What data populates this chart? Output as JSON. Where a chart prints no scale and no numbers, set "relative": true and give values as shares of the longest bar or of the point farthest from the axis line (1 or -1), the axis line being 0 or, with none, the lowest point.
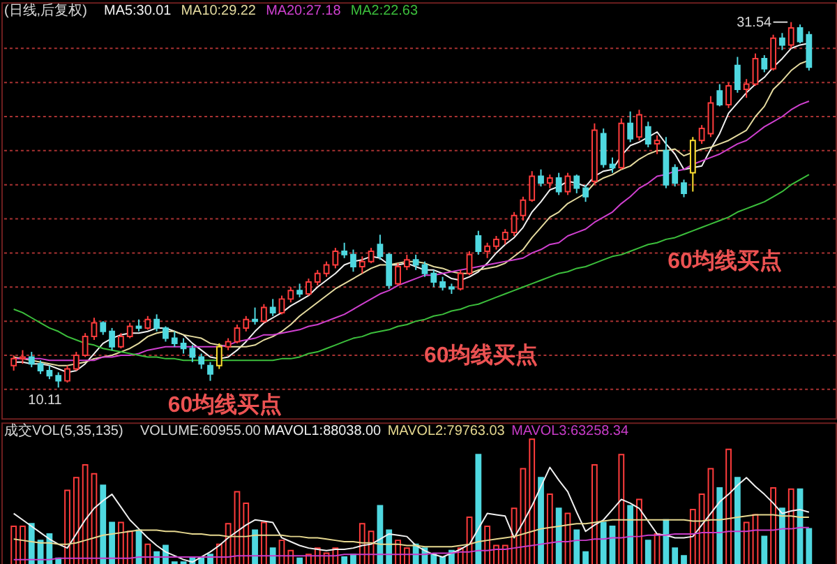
{
  "chart_data": [
    {
      "type": "candlestick",
      "title": "(日线,后复权)",
      "categories": [
        null,
        null,
        null,
        null,
        null,
        null,
        null,
        null,
        null,
        null,
        null,
        null,
        null,
        null,
        null,
        null,
        null,
        null,
        null,
        null,
        null,
        null,
        null,
        null,
        null,
        null,
        null,
        null,
        null,
        null,
        null,
        null,
        null,
        null,
        null,
        null,
        null,
        null,
        null,
        null,
        null,
        null,
        null,
        null,
        null,
        null,
        null,
        null,
        null,
        null,
        null,
        null,
        null,
        null,
        null,
        null,
        null,
        null,
        null,
        null,
        null,
        null,
        null,
        null,
        null,
        null,
        null,
        null,
        null,
        null,
        null,
        null,
        null,
        null,
        null,
        null,
        null,
        null,
        null,
        null,
        null,
        null,
        null,
        null,
        null,
        null,
        null,
        null,
        null,
        null
      ],
      "ohlc": [
        [
          11.4,
          12.0,
          11.1,
          11.8
        ],
        [
          11.8,
          12.3,
          11.5,
          11.9
        ],
        [
          11.9,
          12.2,
          11.3,
          11.5
        ],
        [
          11.5,
          11.7,
          10.9,
          11.1
        ],
        [
          11.1,
          11.4,
          10.6,
          10.8
        ],
        [
          10.8,
          11.0,
          10.11,
          10.5
        ],
        [
          10.5,
          11.4,
          10.4,
          11.2
        ],
        [
          11.2,
          12.2,
          11.1,
          12.0
        ],
        [
          12.0,
          13.3,
          11.9,
          13.1
        ],
        [
          13.1,
          14.2,
          12.9,
          13.9
        ],
        [
          13.9,
          14.0,
          13.2,
          13.4
        ],
        [
          13.4,
          13.6,
          12.3,
          12.5
        ],
        [
          12.5,
          13.3,
          12.4,
          13.1
        ],
        [
          13.1,
          13.9,
          13.0,
          13.7
        ],
        [
          13.7,
          14.1,
          13.4,
          13.6
        ],
        [
          13.6,
          14.3,
          13.5,
          14.1
        ],
        [
          14.1,
          14.4,
          13.4,
          13.6
        ],
        [
          13.6,
          13.7,
          12.8,
          13.0
        ],
        [
          13.0,
          13.4,
          12.5,
          12.7
        ],
        [
          12.7,
          13.0,
          12.1,
          12.4
        ],
        [
          12.4,
          12.6,
          11.6,
          11.9
        ],
        [
          11.9,
          12.1,
          11.2,
          11.5
        ],
        [
          11.4,
          11.6,
          10.5,
          10.9
        ],
        [
          11.4,
          12.7,
          11.2,
          12.5
        ],
        [
          12.5,
          13.0,
          12.3,
          12.8
        ],
        [
          12.8,
          13.8,
          12.7,
          13.6
        ],
        [
          13.6,
          14.3,
          13.4,
          14.1
        ],
        [
          14.1,
          14.8,
          13.8,
          14.0
        ],
        [
          14.0,
          15.0,
          13.9,
          14.8
        ],
        [
          14.8,
          15.3,
          14.3,
          14.5
        ],
        [
          14.5,
          15.5,
          14.4,
          15.3
        ],
        [
          15.3,
          16.0,
          15.1,
          15.8
        ],
        [
          15.8,
          16.2,
          15.4,
          15.6
        ],
        [
          15.6,
          16.5,
          15.5,
          16.3
        ],
        [
          16.3,
          17.0,
          16.1,
          16.8
        ],
        [
          16.8,
          17.5,
          16.6,
          17.3
        ],
        [
          17.3,
          18.3,
          17.1,
          18.1
        ],
        [
          18.1,
          18.6,
          17.7,
          17.9
        ],
        [
          17.9,
          18.2,
          16.9,
          17.2
        ],
        [
          17.2,
          17.8,
          16.8,
          17.5
        ],
        [
          17.5,
          18.3,
          17.4,
          18.1
        ],
        [
          18.5,
          19.07,
          17.6,
          17.8
        ],
        [
          17.9,
          18.0,
          15.9,
          16.1
        ],
        [
          16.2,
          17.4,
          16.1,
          17.2
        ],
        [
          17.2,
          17.9,
          17.0,
          17.6
        ],
        [
          17.6,
          17.9,
          17.0,
          17.3
        ],
        [
          17.3,
          17.5,
          16.6,
          16.8
        ],
        [
          16.8,
          17.0,
          16.0,
          16.3
        ],
        [
          16.3,
          16.6,
          15.8,
          16.0
        ],
        [
          16.0,
          16.2,
          15.6,
          15.9
        ],
        [
          15.9,
          17.0,
          15.8,
          16.8
        ],
        [
          16.8,
          18.1,
          16.7,
          17.9
        ],
        [
          19.0,
          19.3,
          17.9,
          18.1
        ],
        [
          18.1,
          18.6,
          17.7,
          18.4
        ],
        [
          18.4,
          19.0,
          18.2,
          18.8
        ],
        [
          18.8,
          19.4,
          18.5,
          19.2
        ],
        [
          19.2,
          20.4,
          19.0,
          20.2
        ],
        [
          20.2,
          21.3,
          19.9,
          21.1
        ],
        [
          21.1,
          22.8,
          21.0,
          22.5
        ],
        [
          22.5,
          22.9,
          21.9,
          22.1
        ],
        [
          22.1,
          22.6,
          21.8,
          22.4
        ],
        [
          22.4,
          22.7,
          21.4,
          21.6
        ],
        [
          21.6,
          22.7,
          21.4,
          22.5
        ],
        [
          22.5,
          22.6,
          21.5,
          21.8
        ],
        [
          21.8,
          22.0,
          21.0,
          21.3
        ],
        [
          22.2,
          25.6,
          22.0,
          25.2
        ],
        [
          25.0,
          25.3,
          23.0,
          23.2
        ],
        [
          23.2,
          23.6,
          22.7,
          23.0
        ],
        [
          23.0,
          25.9,
          22.9,
          25.6
        ],
        [
          25.6,
          26.3,
          24.5,
          24.7
        ],
        [
          24.8,
          26.4,
          24.6,
          26.1
        ],
        [
          25.4,
          25.7,
          24.2,
          24.4
        ],
        [
          24.4,
          24.9,
          23.8,
          24.6
        ],
        [
          24.0,
          24.8,
          21.8,
          22.0
        ],
        [
          23.0,
          23.2,
          21.9,
          22.1
        ],
        [
          22.1,
          22.3,
          21.27,
          21.5
        ],
        [
          22.7,
          24.8,
          21.6,
          24.6
        ],
        [
          24.6,
          25.5,
          24.4,
          25.3
        ],
        [
          25.0,
          27.2,
          24.8,
          26.8
        ],
        [
          27.5,
          27.9,
          26.6,
          26.7
        ],
        [
          26.7,
          28.0,
          26.5,
          27.8
        ],
        [
          29.0,
          29.5,
          27.4,
          27.6
        ],
        [
          27.6,
          28.2,
          27.1,
          27.9
        ],
        [
          27.9,
          29.7,
          27.8,
          29.4
        ],
        [
          29.4,
          29.6,
          28.6,
          28.8
        ],
        [
          28.8,
          30.8,
          28.7,
          30.6
        ],
        [
          30.6,
          30.9,
          29.9,
          30.2
        ],
        [
          30.2,
          31.54,
          30.0,
          31.2
        ],
        [
          31.2,
          31.4,
          30.3,
          30.4
        ],
        [
          30.8,
          31.0,
          28.7,
          28.9
        ]
      ],
      "colors": [
        "#ff3c3c",
        "#ff3c3c",
        "#4fd8e0",
        "#4fd8e0",
        "#4fd8e0",
        "#4fd8e0",
        "#ff3c3c",
        "#ff3c3c",
        "#ff3c3c",
        "#ff3c3c",
        "#4fd8e0",
        "#4fd8e0",
        "#ff3c3c",
        "#ff3c3c",
        "#4fd8e0",
        "#ff3c3c",
        "#4fd8e0",
        "#4fd8e0",
        "#4fd8e0",
        "#4fd8e0",
        "#4fd8e0",
        "#4fd8e0",
        "#4fd8e0",
        "#ffe030",
        "#ff3c3c",
        "#ff3c3c",
        "#ff3c3c",
        "#4fd8e0",
        "#ff3c3c",
        "#4fd8e0",
        "#ff3c3c",
        "#ff3c3c",
        "#4fd8e0",
        "#ff3c3c",
        "#ff3c3c",
        "#ff3c3c",
        "#ff3c3c",
        "#4fd8e0",
        "#4fd8e0",
        "#ff3c3c",
        "#ff3c3c",
        "#4fd8e0",
        "#4fd8e0",
        "#ff3c3c",
        "#ff3c3c",
        "#4fd8e0",
        "#4fd8e0",
        "#4fd8e0",
        "#4fd8e0",
        "#4fd8e0",
        "#ff3c3c",
        "#ff3c3c",
        "#4fd8e0",
        "#ff3c3c",
        "#ff3c3c",
        "#ff3c3c",
        "#ff3c3c",
        "#ff3c3c",
        "#ff3c3c",
        "#4fd8e0",
        "#ff3c3c",
        "#4fd8e0",
        "#ff3c3c",
        "#4fd8e0",
        "#4fd8e0",
        "#ff3c3c",
        "#4fd8e0",
        "#4fd8e0",
        "#ff3c3c",
        "#4fd8e0",
        "#ff3c3c",
        "#4fd8e0",
        "#ff3c3c",
        "#4fd8e0",
        "#4fd8e0",
        "#4fd8e0",
        "#ffe030",
        "#ff3c3c",
        "#ff3c3c",
        "#4fd8e0",
        "#ff3c3c",
        "#4fd8e0",
        "#ff3c3c",
        "#ff3c3c",
        "#4fd8e0",
        "#ff3c3c",
        "#4fd8e0",
        "#ff3c3c",
        "#4fd8e0",
        "#4fd8e0"
      ],
      "series": [
        {
          "name": "MA5:30.01",
          "type": "line",
          "color": "#f2f2f2",
          "values": [
            11.6,
            11.6,
            11.5,
            11.5,
            11.4,
            11.2,
            11.0,
            11.1,
            11.5,
            12.1,
            12.7,
            13.0,
            13.2,
            13.3,
            13.3,
            13.4,
            13.6,
            13.6,
            13.4,
            13.2,
            12.7,
            12.3,
            11.9,
            11.8,
            11.9,
            12.3,
            12.8,
            13.4,
            13.9,
            14.2,
            14.5,
            14.9,
            15.2,
            15.5,
            16.0,
            16.4,
            16.8,
            17.3,
            17.5,
            17.6,
            17.8,
            17.7,
            17.3,
            17.3,
            17.4,
            17.2,
            17.0,
            17.0,
            16.8,
            16.5,
            16.4,
            16.6,
            16.9,
            17.4,
            18.0,
            18.5,
            18.9,
            19.5,
            20.4,
            21.0,
            21.7,
            21.9,
            22.2,
            22.1,
            21.9,
            22.5,
            22.8,
            22.9,
            23.7,
            24.3,
            24.5,
            24.8,
            25.1,
            24.4,
            23.8,
            22.9,
            23.0,
            23.1,
            24.1,
            25.0,
            26.2,
            26.8,
            27.4,
            27.9,
            28.3,
            28.9,
            29.4,
            30.0,
            30.2,
            30.3
          ]
        },
        {
          "name": "MA10:29.22",
          "type": "line",
          "color": "#e6dca0",
          "values": [
            11.9,
            11.8,
            11.7,
            11.6,
            11.5,
            11.4,
            11.4,
            11.5,
            11.6,
            11.8,
            11.9,
            12.0,
            12.2,
            12.4,
            12.7,
            13.1,
            13.3,
            13.4,
            13.4,
            13.2,
            13.1,
            13.0,
            12.7,
            12.6,
            12.5,
            12.5,
            12.5,
            12.6,
            12.9,
            13.1,
            13.4,
            13.8,
            14.3,
            14.7,
            15.1,
            15.5,
            15.9,
            16.2,
            16.5,
            16.8,
            17.1,
            17.3,
            17.3,
            17.4,
            17.5,
            17.5,
            17.4,
            17.2,
            17.1,
            16.9,
            16.8,
            16.8,
            17.0,
            17.1,
            17.2,
            17.4,
            17.8,
            18.2,
            18.9,
            19.5,
            20.1,
            20.4,
            20.9,
            21.2,
            21.5,
            22.1,
            22.4,
            22.6,
            22.9,
            23.1,
            23.5,
            23.8,
            24.0,
            24.0,
            24.1,
            23.7,
            23.9,
            24.1,
            24.2,
            24.4,
            24.6,
            24.9,
            25.2,
            26.0,
            26.6,
            27.6,
            28.1,
            28.7,
            29.1,
            29.3
          ]
        },
        {
          "name": "MA20:27.18",
          "type": "line",
          "color": "#d040d0",
          "values": [
            11.8,
            11.8,
            11.8,
            11.8,
            11.7,
            11.7,
            11.7,
            11.7,
            11.7,
            11.7,
            11.9,
            11.9,
            12.0,
            12.0,
            12.1,
            12.3,
            12.4,
            12.5,
            12.5,
            12.5,
            12.5,
            12.5,
            12.5,
            12.5,
            12.6,
            12.8,
            12.9,
            13.0,
            13.2,
            13.2,
            13.3,
            13.4,
            13.5,
            13.7,
            13.8,
            14.0,
            14.2,
            14.4,
            14.7,
            15.0,
            15.3,
            15.6,
            15.8,
            16.1,
            16.3,
            16.5,
            16.7,
            16.7,
            16.8,
            16.9,
            17.0,
            17.1,
            17.2,
            17.3,
            17.4,
            17.5,
            17.6,
            17.7,
            18.0,
            18.2,
            18.5,
            18.6,
            19.0,
            19.2,
            19.4,
            19.8,
            20.1,
            20.4,
            20.9,
            21.3,
            21.8,
            22.1,
            22.5,
            22.6,
            22.8,
            22.9,
            23.2,
            23.4,
            23.6,
            23.8,
            24.1,
            24.4,
            24.6,
            25.0,
            25.4,
            25.7,
            26.0,
            26.4,
            26.7,
            26.9
          ]
        },
        {
          "name": "MA2:22.63",
          "type": "line",
          "color": "#3cbf3c",
          "values": [
            14.7,
            14.5,
            14.2,
            13.9,
            13.6,
            13.4,
            13.1,
            12.9,
            12.7,
            12.6,
            12.4,
            12.3,
            12.2,
            12.1,
            12.0,
            11.9,
            11.9,
            11.8,
            11.8,
            11.7,
            11.7,
            11.7,
            11.7,
            11.7,
            11.7,
            11.7,
            11.7,
            11.7,
            11.7,
            11.7,
            11.8,
            11.8,
            11.9,
            12.1,
            12.2,
            12.4,
            12.6,
            12.8,
            13.0,
            13.1,
            13.3,
            13.4,
            13.5,
            13.7,
            13.8,
            14.0,
            14.1,
            14.3,
            14.4,
            14.6,
            14.7,
            14.9,
            15.0,
            15.2,
            15.4,
            15.6,
            15.8,
            16.0,
            16.2,
            16.4,
            16.6,
            16.8,
            16.9,
            17.1,
            17.2,
            17.4,
            17.6,
            17.8,
            17.9,
            18.1,
            18.3,
            18.5,
            18.6,
            18.8,
            18.9,
            19.1,
            19.3,
            19.5,
            19.7,
            19.9,
            20.1,
            20.4,
            20.6,
            20.8,
            21.0,
            21.3,
            21.6,
            22.0,
            22.3,
            22.6
          ]
        }
      ],
      "ylim": [
        8.3,
        32.7
      ],
      "yticks": [
        {
          "value": 10,
          "label": null
        },
        {
          "value": 12,
          "label": null
        },
        {
          "value": 14,
          "label": null
        },
        {
          "value": 16,
          "label": null
        },
        {
          "value": 18,
          "label": null
        },
        {
          "value": 20,
          "label": null
        },
        {
          "value": 22,
          "label": null
        },
        {
          "value": 24,
          "label": null
        },
        {
          "value": 26,
          "label": null
        },
        {
          "value": 28,
          "label": null
        },
        {
          "value": 30,
          "label": null
        }
      ],
      "grid": "y",
      "tick_labels": false,
      "legend": "top left",
      "annotations": [
        "31.54",
        "10.11",
        "60均线买点",
        "60均线买点",
        "60均线买点"
      ]
    },
    {
      "type": "bar",
      "title": "成交VOL(5,35,135)",
      "relative": true,
      "categories": [
        null,
        null,
        null,
        null,
        null,
        null,
        null,
        null,
        null,
        null,
        null,
        null,
        null,
        null,
        null,
        null,
        null,
        null,
        null,
        null,
        null,
        null,
        null,
        null,
        null,
        null,
        null,
        null,
        null,
        null,
        null,
        null,
        null,
        null,
        null,
        null,
        null,
        null,
        null,
        null,
        null,
        null,
        null,
        null,
        null,
        null,
        null,
        null,
        null,
        null,
        null,
        null,
        null,
        null,
        null,
        null,
        null,
        null,
        null,
        null,
        null,
        null,
        null,
        null,
        null,
        null,
        null,
        null,
        null,
        null,
        null,
        null,
        null,
        null,
        null,
        null,
        null,
        null,
        null,
        null,
        null,
        null,
        null,
        null,
        null,
        null,
        null,
        null,
        null,
        null
      ],
      "series": [
        {
          "type": "bar",
          "colors": [
            "#ff3c3c",
            "#ff3c3c",
            "#4fd8e0",
            "#4fd8e0",
            "#4fd8e0",
            "#4fd8e0",
            "#ff3c3c",
            "#ff3c3c",
            "#ff3c3c",
            "#ff3c3c",
            "#4fd8e0",
            "#4fd8e0",
            "#ff3c3c",
            "#ff3c3c",
            "#4fd8e0",
            "#ff3c3c",
            "#4fd8e0",
            "#4fd8e0",
            "#4fd8e0",
            "#4fd8e0",
            "#4fd8e0",
            "#4fd8e0",
            "#4fd8e0",
            "#ff3c3c",
            "#ff3c3c",
            "#ff3c3c",
            "#ff3c3c",
            "#4fd8e0",
            "#ff3c3c",
            "#4fd8e0",
            "#ff3c3c",
            "#ff3c3c",
            "#4fd8e0",
            "#ff3c3c",
            "#ff3c3c",
            "#ff3c3c",
            "#ff3c3c",
            "#4fd8e0",
            "#4fd8e0",
            "#ff3c3c",
            "#ff3c3c",
            "#4fd8e0",
            "#4fd8e0",
            "#ff3c3c",
            "#ff3c3c",
            "#4fd8e0",
            "#4fd8e0",
            "#4fd8e0",
            "#4fd8e0",
            "#4fd8e0",
            "#ff3c3c",
            "#ff3c3c",
            "#4fd8e0",
            "#ff3c3c",
            "#ff3c3c",
            "#ff3c3c",
            "#ff3c3c",
            "#ff3c3c",
            "#ff3c3c",
            "#4fd8e0",
            "#ff3c3c",
            "#4fd8e0",
            "#ff3c3c",
            "#4fd8e0",
            "#4fd8e0",
            "#ff3c3c",
            "#4fd8e0",
            "#4fd8e0",
            "#ff3c3c",
            "#4fd8e0",
            "#ff3c3c",
            "#4fd8e0",
            "#ff3c3c",
            "#4fd8e0",
            "#4fd8e0",
            "#4fd8e0",
            "#ff3c3c",
            "#ff3c3c",
            "#ff3c3c",
            "#4fd8e0",
            "#ff3c3c",
            "#4fd8e0",
            "#ff3c3c",
            "#ff3c3c",
            "#4fd8e0",
            "#ff3c3c",
            "#4fd8e0",
            "#ff3c3c",
            "#4fd8e0",
            "#4fd8e0"
          ],
          "values": [
            0.32,
            0.32,
            0.34,
            0.21,
            0.26,
            0.07,
            0.6,
            0.7,
            0.8,
            0.73,
            0.64,
            0.35,
            0.35,
            0.28,
            0.29,
            0.18,
            0.12,
            0.17,
            0.04,
            0.04,
            0.07,
            0.07,
            0.1,
            0.18,
            0.34,
            0.59,
            0.5,
            0.29,
            0.35,
            0.15,
            0.21,
            0.13,
            0.07,
            0.1,
            0.15,
            0.11,
            0.15,
            0.08,
            0.1,
            0.34,
            0.28,
            0.48,
            0.29,
            0.21,
            0.15,
            0.18,
            0.15,
            0.1,
            0.08,
            0.13,
            0.15,
            0.39,
            0.88,
            0.32,
            0.17,
            0.17,
            0.46,
            0.77,
            1.0,
            0.7,
            0.57,
            0.46,
            0.42,
            0.29,
            0.12,
            0.8,
            0.35,
            0.32,
            0.88,
            0.48,
            0.53,
            0.21,
            0.26,
            0.37,
            0.15,
            0.09,
            0.45,
            0.57,
            0.77,
            0.62,
            0.92,
            0.7,
            0.35,
            0.41,
            0.24,
            0.62,
            0.46,
            0.61,
            0.61,
            0.3
          ]
        },
        {
          "name": "MAVOL1:88038.00",
          "type": "line",
          "color": "#f0f0f0",
          "values": [
            0.42,
            0.37,
            0.32,
            0.27,
            0.22,
            0.18,
            0.15,
            0.26,
            0.37,
            0.46,
            0.52,
            0.57,
            0.47,
            0.37,
            0.3,
            0.23,
            0.17,
            0.12,
            0.09,
            0.06,
            0.04,
            0.08,
            0.12,
            0.17,
            0.23,
            0.28,
            0.33,
            0.37,
            0.36,
            0.35,
            0.23,
            0.2,
            0.17,
            0.15,
            0.14,
            0.13,
            0.14,
            0.14,
            0.15,
            0.17,
            0.18,
            0.22,
            0.26,
            0.25,
            0.24,
            0.17,
            0.13,
            0.1,
            0.08,
            0.11,
            0.14,
            0.18,
            0.3,
            0.42,
            0.41,
            0.4,
            0.23,
            0.35,
            0.48,
            0.63,
            0.78,
            0.68,
            0.59,
            0.43,
            0.28,
            0.33,
            0.37,
            0.45,
            0.53,
            0.5,
            0.46,
            0.36,
            0.26,
            0.25,
            0.23,
            0.23,
            0.24,
            0.33,
            0.42,
            0.51,
            0.57,
            0.64,
            0.7,
            0.63,
            0.57,
            0.5,
            0.42,
            0.44,
            0.45,
            0.43
          ]
        },
        {
          "name": "MAVOL2:79763.03",
          "type": "line",
          "color": "#e6d890",
          "values": [
            0.22,
            0.21,
            0.2,
            0.19,
            0.19,
            0.18,
            0.18,
            0.19,
            0.21,
            0.23,
            0.25,
            0.26,
            0.27,
            0.28,
            0.29,
            0.29,
            0.29,
            0.28,
            0.28,
            0.27,
            0.26,
            0.26,
            0.25,
            0.25,
            0.24,
            0.24,
            0.24,
            0.25,
            0.25,
            0.25,
            0.25,
            0.24,
            0.24,
            0.23,
            0.23,
            0.22,
            0.21,
            0.2,
            0.2,
            0.19,
            0.19,
            0.18,
            0.18,
            0.18,
            0.17,
            0.17,
            0.16,
            0.16,
            0.16,
            0.16,
            0.17,
            0.18,
            0.2,
            0.21,
            0.22,
            0.23,
            0.24,
            0.26,
            0.28,
            0.3,
            0.31,
            0.32,
            0.33,
            0.34,
            0.34,
            0.35,
            0.36,
            0.37,
            0.37,
            0.37,
            0.37,
            0.37,
            0.37,
            0.37,
            0.37,
            0.37,
            0.36,
            0.36,
            0.37,
            0.37,
            0.38,
            0.39,
            0.4,
            0.41,
            0.41,
            0.41,
            0.4,
            0.4,
            0.39,
            0.39
          ]
        },
        {
          "name": "MAVOL3:63258.34",
          "type": "line",
          "color": "#c83cc8",
          "values": [
            0.06,
            0.06,
            0.06,
            0.06,
            0.06,
            0.07,
            0.07,
            0.07,
            0.07,
            0.07,
            0.07,
            0.07,
            0.07,
            0.07,
            0.08,
            0.08,
            0.08,
            0.08,
            0.08,
            0.08,
            0.08,
            0.08,
            0.08,
            0.08,
            0.08,
            0.09,
            0.09,
            0.09,
            0.09,
            0.09,
            0.09,
            0.09,
            0.09,
            0.09,
            0.09,
            0.09,
            0.09,
            0.1,
            0.1,
            0.1,
            0.1,
            0.1,
            0.1,
            0.1,
            0.1,
            0.1,
            0.1,
            0.11,
            0.11,
            0.11,
            0.12,
            0.12,
            0.13,
            0.13,
            0.14,
            0.14,
            0.15,
            0.16,
            0.17,
            0.18,
            0.19,
            0.2,
            0.2,
            0.21,
            0.21,
            0.22,
            0.22,
            0.23,
            0.23,
            0.24,
            0.24,
            0.25,
            0.25,
            0.25,
            0.26,
            0.26,
            0.26,
            0.27,
            0.27,
            0.27,
            0.28,
            0.28,
            0.28,
            0.29,
            0.29,
            0.29,
            0.3,
            0.3,
            0.31,
            0.31
          ]
        }
      ],
      "legend": "top left",
      "tick_labels": false,
      "annotations": [
        "VOLUME:60955.00"
      ]
    }
  ]
}
